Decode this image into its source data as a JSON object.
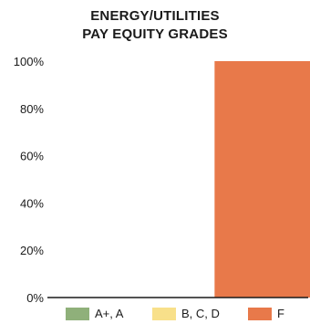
{
  "chart_data": {
    "type": "bar",
    "title": [
      "ENERGY/UTILITIES",
      "PAY EQUITY GRADES"
    ],
    "categories": [
      "A+, A",
      "B, C, D",
      "F"
    ],
    "values": [
      0,
      0,
      100
    ],
    "colors": [
      "#8fb07a",
      "#f8e08a",
      "#e8794a"
    ],
    "y_tick_labels": [
      "0%",
      "20%",
      "40%",
      "60%",
      "80%",
      "100%"
    ],
    "y_ticks": [
      0,
      20,
      40,
      60,
      80,
      100
    ],
    "ylim": [
      0,
      100
    ],
    "xlabel": "",
    "ylabel": "",
    "grid": false,
    "legend_position": "bottom"
  }
}
